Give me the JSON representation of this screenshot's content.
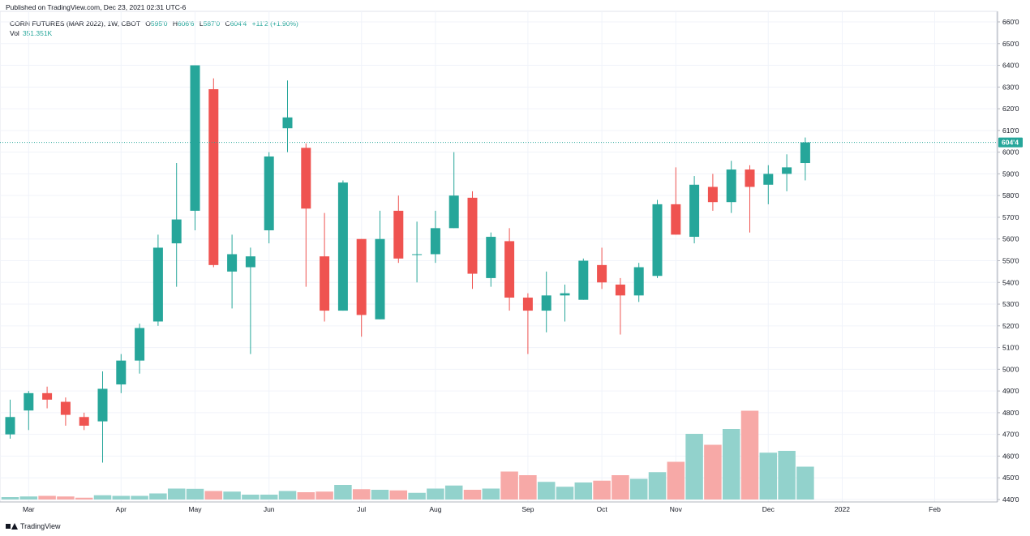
{
  "header": {
    "published": "Published on TradingView.com, Dec 23, 2021 02:31 UTC-6"
  },
  "legend": {
    "symbol": "CORN FUTURES (MAR 2022), 1W, CBOT",
    "open_label": "O",
    "open": "595'0",
    "high_label": "H",
    "high": "606'6",
    "low_label": "L",
    "low": "587'0",
    "close_label": "C",
    "close": "604'4",
    "change": "+11'2 (+1.90%)",
    "vol_label": "Vol",
    "vol_value": "351.351K"
  },
  "last_price_label": "604'4",
  "footer": {
    "brand": "TradingView"
  },
  "colors": {
    "up": "#26a69a",
    "down": "#ef5350",
    "vol_up": "#92d2cc",
    "vol_down": "#f7a9a7",
    "grid": "#f0f3fa",
    "axis_text": "#131722"
  },
  "chart_data": {
    "type": "candlestick",
    "price_scale": "right",
    "ylim": [
      440,
      660
    ],
    "y_ticks": [
      "660'0",
      "650'0",
      "640'0",
      "630'0",
      "620'0",
      "610'0",
      "600'0",
      "590'0",
      "580'0",
      "570'0",
      "560'0",
      "550'0",
      "540'0",
      "530'0",
      "520'0",
      "510'0",
      "500'0",
      "490'0",
      "480'0",
      "470'0",
      "460'0",
      "450'0",
      "440'0"
    ],
    "x_ticks": [
      {
        "label": "Mar",
        "index": 1
      },
      {
        "label": "Apr",
        "index": 6
      },
      {
        "label": "May",
        "index": 10
      },
      {
        "label": "Jun",
        "index": 14
      },
      {
        "label": "Jul",
        "index": 19
      },
      {
        "label": "Aug",
        "index": 23
      },
      {
        "label": "Sep",
        "index": 28
      },
      {
        "label": "Oct",
        "index": 32
      },
      {
        "label": "Nov",
        "index": 36
      },
      {
        "label": "Dec",
        "index": 41
      },
      {
        "label": "2022",
        "index": 45
      },
      {
        "label": "Feb",
        "index": 50
      }
    ],
    "candles": [
      {
        "o": 470,
        "h": 486,
        "l": 468,
        "c": 478,
        "v": 0.02
      },
      {
        "o": 481,
        "h": 490,
        "l": 472,
        "c": 489,
        "v": 0.025
      },
      {
        "o": 489,
        "h": 492,
        "l": 482,
        "c": 486,
        "v": 0.03
      },
      {
        "o": 485,
        "h": 487,
        "l": 474,
        "c": 479,
        "v": 0.025
      },
      {
        "o": 478,
        "h": 480,
        "l": 472,
        "c": 474,
        "v": 0.015
      },
      {
        "o": 476,
        "h": 499,
        "l": 457,
        "c": 491,
        "v": 0.035
      },
      {
        "o": 493,
        "h": 507,
        "l": 489,
        "c": 504,
        "v": 0.03
      },
      {
        "o": 504,
        "h": 521,
        "l": 498,
        "c": 519,
        "v": 0.03
      },
      {
        "o": 522,
        "h": 562,
        "l": 520,
        "c": 556,
        "v": 0.05
      },
      {
        "o": 558,
        "h": 595,
        "l": 538,
        "c": 569,
        "v": 0.09
      },
      {
        "o": 573,
        "h": 640,
        "l": 564,
        "c": 640,
        "v": 0.088
      },
      {
        "o": 629,
        "h": 634,
        "l": 547,
        "c": 548,
        "v": 0.07
      },
      {
        "o": 545,
        "h": 562,
        "l": 528,
        "c": 553,
        "v": 0.065
      },
      {
        "o": 547,
        "h": 556,
        "l": 507,
        "c": 552,
        "v": 0.04
      },
      {
        "o": 564,
        "h": 600,
        "l": 558,
        "c": 598,
        "v": 0.04
      },
      {
        "o": 611,
        "h": 633,
        "l": 600,
        "c": 616,
        "v": 0.07
      },
      {
        "o": 602,
        "h": 604,
        "l": 538,
        "c": 574,
        "v": 0.06
      },
      {
        "o": 552,
        "h": 572,
        "l": 522,
        "c": 527,
        "v": 0.065
      },
      {
        "o": 527,
        "h": 587,
        "l": 527,
        "c": 586,
        "v": 0.12
      },
      {
        "o": 560,
        "h": 560,
        "l": 515,
        "c": 525,
        "v": 0.085
      },
      {
        "o": 523,
        "h": 573,
        "l": 523,
        "c": 560,
        "v": 0.08
      },
      {
        "o": 573,
        "h": 580,
        "l": 549,
        "c": 551,
        "v": 0.075
      },
      {
        "o": 553,
        "h": 568,
        "l": 540,
        "c": 553,
        "v": 0.055
      },
      {
        "o": 553,
        "h": 573,
        "l": 549,
        "c": 565,
        "v": 0.09
      },
      {
        "o": 565,
        "h": 600,
        "l": 565,
        "c": 580,
        "v": 0.115
      },
      {
        "o": 579,
        "h": 582,
        "l": 537,
        "c": 544,
        "v": 0.08
      },
      {
        "o": 542,
        "h": 563,
        "l": 538,
        "c": 561,
        "v": 0.09
      },
      {
        "o": 559,
        "h": 565,
        "l": 527,
        "c": 533,
        "v": 0.23
      },
      {
        "o": 533,
        "h": 535,
        "l": 507,
        "c": 527,
        "v": 0.2
      },
      {
        "o": 527,
        "h": 545,
        "l": 517,
        "c": 534,
        "v": 0.145
      },
      {
        "o": 534,
        "h": 539,
        "l": 522,
        "c": 535,
        "v": 0.105
      },
      {
        "o": 532,
        "h": 551,
        "l": 532,
        "c": 550,
        "v": 0.14
      },
      {
        "o": 548,
        "h": 556,
        "l": 537,
        "c": 540,
        "v": 0.155
      },
      {
        "o": 539,
        "h": 542,
        "l": 516,
        "c": 534,
        "v": 0.2
      },
      {
        "o": 534,
        "h": 549,
        "l": 531,
        "c": 547,
        "v": 0.17
      },
      {
        "o": 543,
        "h": 578,
        "l": 542,
        "c": 576,
        "v": 0.225
      },
      {
        "o": 576,
        "h": 593,
        "l": 562,
        "c": 562,
        "v": 0.31
      },
      {
        "o": 561,
        "h": 589,
        "l": 558,
        "c": 585,
        "v": 0.54
      },
      {
        "o": 584,
        "h": 590,
        "l": 573,
        "c": 577,
        "v": 0.45
      },
      {
        "o": 577,
        "h": 596,
        "l": 572,
        "c": 592,
        "v": 0.58
      },
      {
        "o": 592,
        "h": 594,
        "l": 563,
        "c": 584,
        "v": 0.73
      },
      {
        "o": 585,
        "h": 594,
        "l": 576,
        "c": 590,
        "v": 0.385
      },
      {
        "o": 590,
        "h": 599,
        "l": 582,
        "c": 593,
        "v": 0.4
      },
      {
        "o": 595,
        "h": 606.75,
        "l": 587,
        "c": 604.5,
        "v": 0.27
      }
    ]
  }
}
